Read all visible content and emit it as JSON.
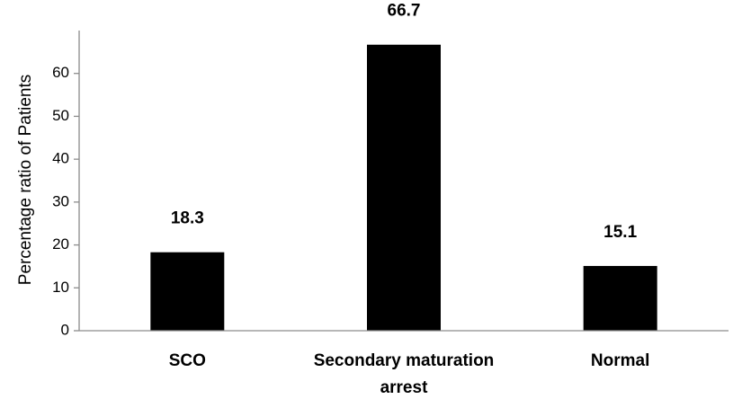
{
  "chart_data": {
    "type": "bar",
    "categories": [
      "SCO",
      "Secondary maturation arrest",
      "Normal"
    ],
    "category_lines": [
      [
        "SCO"
      ],
      [
        "Secondary maturation",
        "arrest"
      ],
      [
        "Normal"
      ]
    ],
    "values": [
      18.3,
      66.7,
      15.1
    ],
    "data_labels": [
      "18.3",
      "66.7",
      "15.1"
    ],
    "title": "",
    "xlabel": "",
    "ylabel": "Percentage ratio of Patients",
    "ylim": [
      0,
      70
    ],
    "yticks": [
      0,
      10,
      20,
      30,
      40,
      50,
      60
    ],
    "grid": false,
    "legend": "none",
    "bar_color": "#000000",
    "axis_color": "#8c8c8c"
  }
}
